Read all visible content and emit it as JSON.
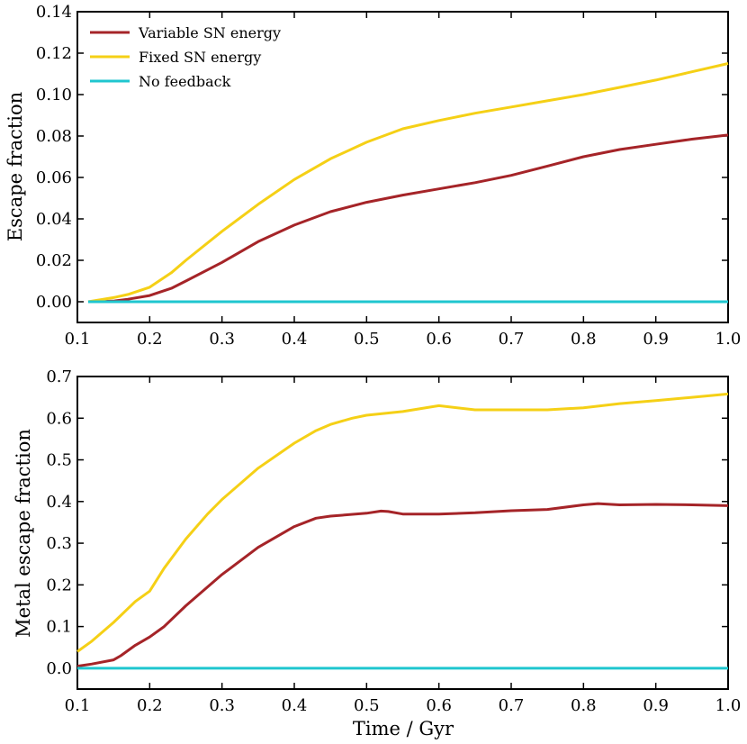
{
  "colors": {
    "variable": "#a52428",
    "fixed": "#f5d016",
    "nofeedback": "#1fc6cf"
  },
  "chart_data": [
    {
      "type": "line",
      "ylabel": "Escape fraction",
      "xlabel": "",
      "xlim": [
        0.1,
        1.0
      ],
      "ylim": [
        -0.01,
        0.14
      ],
      "xticks": [
        "0.1",
        "0.2",
        "0.3",
        "0.4",
        "0.5",
        "0.6",
        "0.7",
        "0.8",
        "0.9",
        "1.0"
      ],
      "yticks": [
        "0.00",
        "0.02",
        "0.04",
        "0.06",
        "0.08",
        "0.10",
        "0.12",
        "0.14"
      ],
      "legend": {
        "placement": "top-left",
        "entries": [
          "Variable SN energy",
          "Fixed SN energy",
          "No feedback"
        ]
      },
      "series": [
        {
          "name": "Variable SN energy",
          "color_key": "variable",
          "x": [
            0.115,
            0.15,
            0.17,
            0.2,
            0.23,
            0.25,
            0.3,
            0.35,
            0.4,
            0.45,
            0.5,
            0.55,
            0.6,
            0.65,
            0.7,
            0.75,
            0.8,
            0.85,
            0.9,
            0.95,
            1.0
          ],
          "y": [
            0.0,
            0.0003,
            0.0012,
            0.003,
            0.0065,
            0.01,
            0.019,
            0.029,
            0.037,
            0.0435,
            0.048,
            0.0515,
            0.0545,
            0.0575,
            0.061,
            0.0655,
            0.07,
            0.0735,
            0.076,
            0.0785,
            0.0805
          ]
        },
        {
          "name": "Fixed SN energy",
          "color_key": "fixed",
          "x": [
            0.115,
            0.15,
            0.17,
            0.2,
            0.23,
            0.25,
            0.3,
            0.35,
            0.4,
            0.45,
            0.5,
            0.55,
            0.6,
            0.65,
            0.7,
            0.75,
            0.8,
            0.85,
            0.9,
            0.95,
            1.0
          ],
          "y": [
            0.0,
            0.002,
            0.0035,
            0.007,
            0.014,
            0.02,
            0.034,
            0.047,
            0.059,
            0.069,
            0.077,
            0.0835,
            0.0875,
            0.091,
            0.094,
            0.097,
            0.1,
            0.1035,
            0.107,
            0.111,
            0.115
          ]
        },
        {
          "name": "No feedback",
          "color_key": "nofeedback",
          "x": [
            0.115,
            1.0
          ],
          "y": [
            0.0,
            0.0
          ]
        }
      ]
    },
    {
      "type": "line",
      "ylabel": "Metal escape fraction",
      "xlabel": "Time / Gyr",
      "xlim": [
        0.1,
        1.0
      ],
      "ylim": [
        -0.05,
        0.7
      ],
      "xticks": [
        "0.1",
        "0.2",
        "0.3",
        "0.4",
        "0.5",
        "0.6",
        "0.7",
        "0.8",
        "0.9",
        "1.0"
      ],
      "yticks": [
        "0.0",
        "0.1",
        "0.2",
        "0.3",
        "0.4",
        "0.5",
        "0.6",
        "0.7"
      ],
      "series": [
        {
          "name": "Variable SN energy",
          "color_key": "variable",
          "x": [
            0.1,
            0.12,
            0.15,
            0.16,
            0.18,
            0.2,
            0.22,
            0.25,
            0.3,
            0.35,
            0.4,
            0.43,
            0.45,
            0.5,
            0.52,
            0.53,
            0.55,
            0.6,
            0.65,
            0.7,
            0.75,
            0.8,
            0.82,
            0.85,
            0.9,
            0.95,
            1.0
          ],
          "y": [
            0.005,
            0.01,
            0.02,
            0.03,
            0.055,
            0.075,
            0.1,
            0.15,
            0.225,
            0.29,
            0.34,
            0.36,
            0.365,
            0.372,
            0.377,
            0.376,
            0.37,
            0.37,
            0.373,
            0.378,
            0.381,
            0.392,
            0.395,
            0.392,
            0.393,
            0.392,
            0.39
          ]
        },
        {
          "name": "Fixed SN energy",
          "color_key": "fixed",
          "x": [
            0.1,
            0.12,
            0.15,
            0.18,
            0.2,
            0.22,
            0.25,
            0.28,
            0.3,
            0.35,
            0.4,
            0.43,
            0.45,
            0.48,
            0.5,
            0.55,
            0.6,
            0.65,
            0.7,
            0.75,
            0.8,
            0.85,
            0.9,
            0.95,
            1.0
          ],
          "y": [
            0.04,
            0.065,
            0.11,
            0.16,
            0.185,
            0.24,
            0.31,
            0.37,
            0.405,
            0.48,
            0.54,
            0.57,
            0.585,
            0.6,
            0.607,
            0.616,
            0.63,
            0.62,
            0.62,
            0.62,
            0.625,
            0.635,
            0.642,
            0.65,
            0.658
          ]
        },
        {
          "name": "No feedback",
          "color_key": "nofeedback",
          "x": [
            0.1,
            1.0
          ],
          "y": [
            0.0,
            0.0
          ]
        }
      ]
    }
  ]
}
